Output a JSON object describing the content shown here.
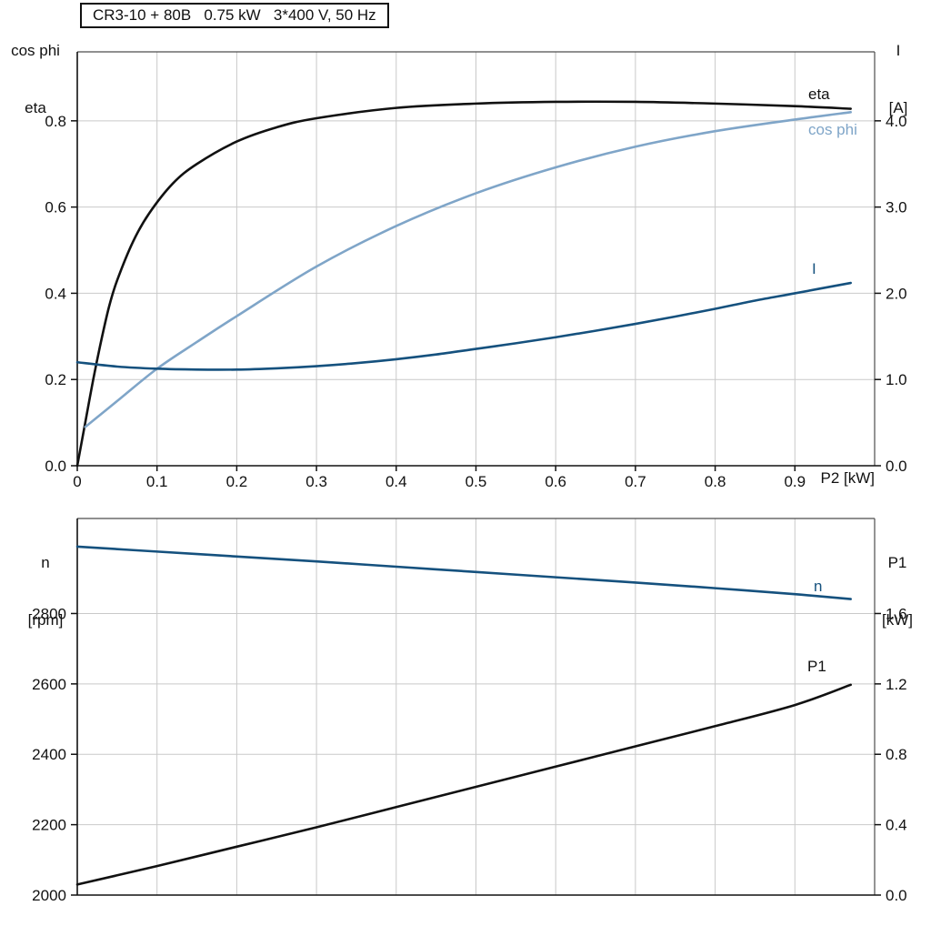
{
  "header": {
    "title_box": "CR3-10 + 80B   0.75 kW   3*400 V, 50 Hz"
  },
  "colors": {
    "black": "#111111",
    "light_blue": "#7FA5C8",
    "dark_blue": "#15517E",
    "grid": "#C9C9C9",
    "frame": "#4D4D4D",
    "axis": "#111111"
  },
  "chart_data": [
    {
      "type": "line",
      "title": "CR3-10 + 80B   0.75 kW   3*400 V, 50 Hz",
      "grid": true,
      "x_axis": {
        "label": "P2 [kW]",
        "min": 0,
        "max": 1.0,
        "grid_step": 0.1,
        "ticks": [
          {
            "v": 0,
            "label": "0"
          },
          {
            "v": 0.1,
            "label": "0.1"
          },
          {
            "v": 0.2,
            "label": "0.2"
          },
          {
            "v": 0.3,
            "label": "0.3"
          },
          {
            "v": 0.4,
            "label": "0.4"
          },
          {
            "v": 0.5,
            "label": "0.5"
          },
          {
            "v": 0.6,
            "label": "0.6"
          },
          {
            "v": 0.7,
            "label": "0.7"
          },
          {
            "v": 0.8,
            "label": "0.8"
          },
          {
            "v": 0.9,
            "label": "0.9"
          }
        ]
      },
      "left_axis": {
        "label_lines": [
          "cos phi",
          "eta"
        ],
        "min": 0,
        "max": 0.96,
        "ticks": [
          {
            "v": 0.0,
            "label": "0.0"
          },
          {
            "v": 0.2,
            "label": "0.2"
          },
          {
            "v": 0.4,
            "label": "0.4"
          },
          {
            "v": 0.6,
            "label": "0.6"
          },
          {
            "v": 0.8,
            "label": "0.8"
          }
        ]
      },
      "right_axis": {
        "label_lines": [
          "I",
          "[A]"
        ],
        "min": 0,
        "max": 4.8,
        "ticks": [
          {
            "v": 0.0,
            "label": "0.0"
          },
          {
            "v": 1.0,
            "label": "1.0"
          },
          {
            "v": 2.0,
            "label": "2.0"
          },
          {
            "v": 3.0,
            "label": "3.0"
          },
          {
            "v": 4.0,
            "label": "4.0"
          }
        ]
      },
      "series": [
        {
          "name": "eta",
          "axis": "left",
          "color": "black",
          "x": [
            0,
            0.005,
            0.01,
            0.02,
            0.03,
            0.04,
            0.05,
            0.07,
            0.09,
            0.12,
            0.15,
            0.2,
            0.25,
            0.3,
            0.4,
            0.5,
            0.6,
            0.7,
            0.8,
            0.9,
            0.97
          ],
          "y": [
            0,
            0.05,
            0.1,
            0.2,
            0.29,
            0.37,
            0.43,
            0.52,
            0.585,
            0.655,
            0.7,
            0.752,
            0.785,
            0.806,
            0.83,
            0.84,
            0.844,
            0.844,
            0.84,
            0.834,
            0.828
          ]
        },
        {
          "name": "cos phi",
          "axis": "left",
          "color": "light_blue",
          "x": [
            0.01,
            0.05,
            0.1,
            0.15,
            0.2,
            0.3,
            0.4,
            0.5,
            0.6,
            0.7,
            0.8,
            0.9,
            0.97
          ],
          "y": [
            0.09,
            0.15,
            0.225,
            0.287,
            0.347,
            0.462,
            0.556,
            0.632,
            0.692,
            0.74,
            0.776,
            0.803,
            0.82
          ]
        },
        {
          "name": "I",
          "axis": "right",
          "color": "dark_blue",
          "x": [
            0,
            0.05,
            0.1,
            0.15,
            0.2,
            0.25,
            0.3,
            0.35,
            0.4,
            0.45,
            0.5,
            0.55,
            0.6,
            0.65,
            0.7,
            0.75,
            0.8,
            0.85,
            0.9,
            0.97
          ],
          "y": [
            1.2,
            1.15,
            1.125,
            1.115,
            1.115,
            1.13,
            1.155,
            1.19,
            1.235,
            1.29,
            1.355,
            1.42,
            1.49,
            1.565,
            1.645,
            1.73,
            1.82,
            1.915,
            2.0,
            2.12
          ]
        }
      ]
    },
    {
      "type": "line",
      "title": "",
      "grid": true,
      "x_axis": {
        "label": "",
        "min": 0,
        "max": 1.0,
        "grid_step": 0.1,
        "ticks": []
      },
      "left_axis": {
        "label_lines": [
          "n",
          "[rpm]"
        ],
        "min": 2000,
        "max": 3070,
        "ticks": [
          {
            "v": 2000,
            "label": "2000"
          },
          {
            "v": 2200,
            "label": "2200"
          },
          {
            "v": 2400,
            "label": "2400"
          },
          {
            "v": 2600,
            "label": "2600"
          },
          {
            "v": 2800,
            "label": "2800"
          }
        ]
      },
      "right_axis": {
        "label_lines": [
          "P1",
          "[kW]"
        ],
        "min": 0,
        "max": 2.14,
        "ticks": [
          {
            "v": 0.0,
            "label": "0.0"
          },
          {
            "v": 0.4,
            "label": "0.4"
          },
          {
            "v": 0.8,
            "label": "0.8"
          },
          {
            "v": 1.2,
            "label": "1.2"
          },
          {
            "v": 1.6,
            "label": "1.6"
          }
        ]
      },
      "series": [
        {
          "name": "n",
          "axis": "left",
          "color": "dark_blue",
          "x": [
            0,
            0.1,
            0.2,
            0.3,
            0.4,
            0.5,
            0.6,
            0.7,
            0.8,
            0.9,
            0.97
          ],
          "y": [
            2990,
            2976,
            2962,
            2948,
            2933,
            2918,
            2903,
            2888,
            2872,
            2855,
            2841
          ]
        },
        {
          "name": "P1",
          "axis": "right",
          "color": "black",
          "x": [
            0,
            0.1,
            0.2,
            0.3,
            0.4,
            0.5,
            0.6,
            0.7,
            0.8,
            0.9,
            0.97
          ],
          "y": [
            0.06,
            0.165,
            0.275,
            0.385,
            0.5,
            0.615,
            0.73,
            0.845,
            0.96,
            1.08,
            1.195
          ]
        }
      ]
    }
  ]
}
